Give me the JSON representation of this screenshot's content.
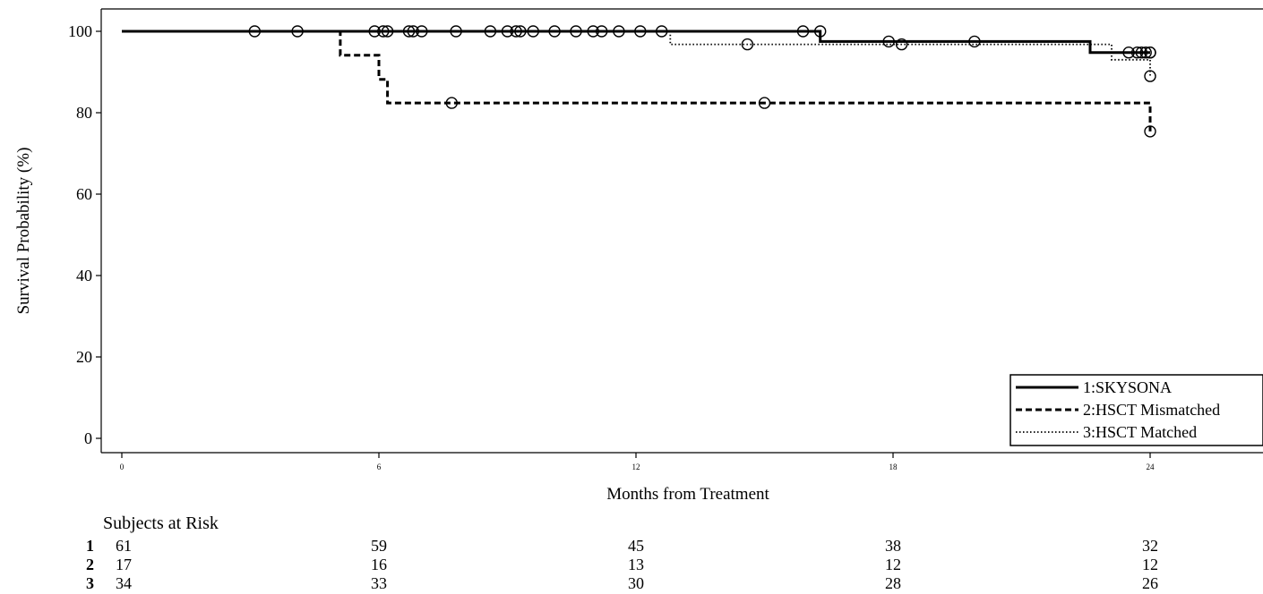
{
  "chart_data": {
    "type": "line",
    "title": "",
    "xlabel": "Months from Treatment",
    "ylabel": "Survival Probability (%)",
    "xlim": [
      0,
      24
    ],
    "ylim": [
      0,
      100
    ],
    "x_ticks": [
      "0",
      "6",
      "12",
      "18",
      "24"
    ],
    "y_ticks": [
      "0",
      "20",
      "40",
      "60",
      "80",
      "100"
    ],
    "grid": false,
    "legend_position": "bottom-right",
    "series": [
      {
        "name": "1:SKYSONA",
        "line_style": "solid",
        "steps": [
          [
            0,
            100
          ],
          [
            16.3,
            100
          ],
          [
            16.3,
            97.5
          ],
          [
            22.6,
            97.5
          ],
          [
            22.6,
            94.8
          ],
          [
            24,
            94.8
          ]
        ],
        "censored": [
          [
            3.1,
            100
          ],
          [
            4.1,
            100
          ],
          [
            5.9,
            100
          ],
          [
            6.1,
            100
          ],
          [
            6.2,
            100
          ],
          [
            6.7,
            100
          ],
          [
            6.8,
            100
          ],
          [
            7.0,
            100
          ],
          [
            7.8,
            100
          ],
          [
            8.6,
            100
          ],
          [
            9.0,
            100
          ],
          [
            9.2,
            100
          ],
          [
            9.3,
            100
          ],
          [
            9.6,
            100
          ],
          [
            10.1,
            100
          ],
          [
            10.6,
            100
          ],
          [
            11.0,
            100
          ],
          [
            11.2,
            100
          ],
          [
            11.6,
            100
          ],
          [
            12.1,
            100
          ],
          [
            12.6,
            100
          ],
          [
            15.9,
            100
          ],
          [
            16.3,
            100
          ],
          [
            17.9,
            97.5
          ],
          [
            19.9,
            97.5
          ],
          [
            23.5,
            94.8
          ],
          [
            23.7,
            94.8
          ],
          [
            23.8,
            94.8
          ],
          [
            23.9,
            94.8
          ],
          [
            24.0,
            94.8
          ],
          [
            24.0,
            94.8
          ]
        ]
      },
      {
        "name": "2:HSCT Mismatched",
        "line_style": "dashed",
        "steps": [
          [
            0,
            100
          ],
          [
            5.1,
            100
          ],
          [
            5.1,
            94.1
          ],
          [
            6.0,
            94.1
          ],
          [
            6.0,
            88.2
          ],
          [
            6.2,
            88.2
          ],
          [
            6.2,
            82.4
          ],
          [
            24,
            82.4
          ],
          [
            24,
            75.4
          ]
        ],
        "censored": [
          [
            7.7,
            82.4
          ],
          [
            15.0,
            82.4
          ],
          [
            24.0,
            75.4
          ]
        ]
      },
      {
        "name": "3:HSCT Matched",
        "line_style": "dotted",
        "steps": [
          [
            0,
            100
          ],
          [
            12.8,
            100
          ],
          [
            12.8,
            96.8
          ],
          [
            23.1,
            96.8
          ],
          [
            23.1,
            93.0
          ],
          [
            24,
            93.0
          ],
          [
            24,
            89.0
          ]
        ],
        "censored": [
          [
            14.6,
            96.8
          ],
          [
            18.2,
            96.8
          ],
          [
            24.0,
            89.0
          ]
        ]
      }
    ],
    "risk_table": {
      "title": "Subjects at Risk",
      "times": [
        0,
        6,
        12,
        18,
        24
      ],
      "rows": [
        {
          "group": "1",
          "values": [
            "61",
            "59",
            "45",
            "38",
            "32"
          ]
        },
        {
          "group": "2",
          "values": [
            "17",
            "16",
            "13",
            "12",
            "12"
          ]
        },
        {
          "group": "3",
          "values": [
            "34",
            "33",
            "30",
            "28",
            "26"
          ]
        }
      ]
    }
  }
}
